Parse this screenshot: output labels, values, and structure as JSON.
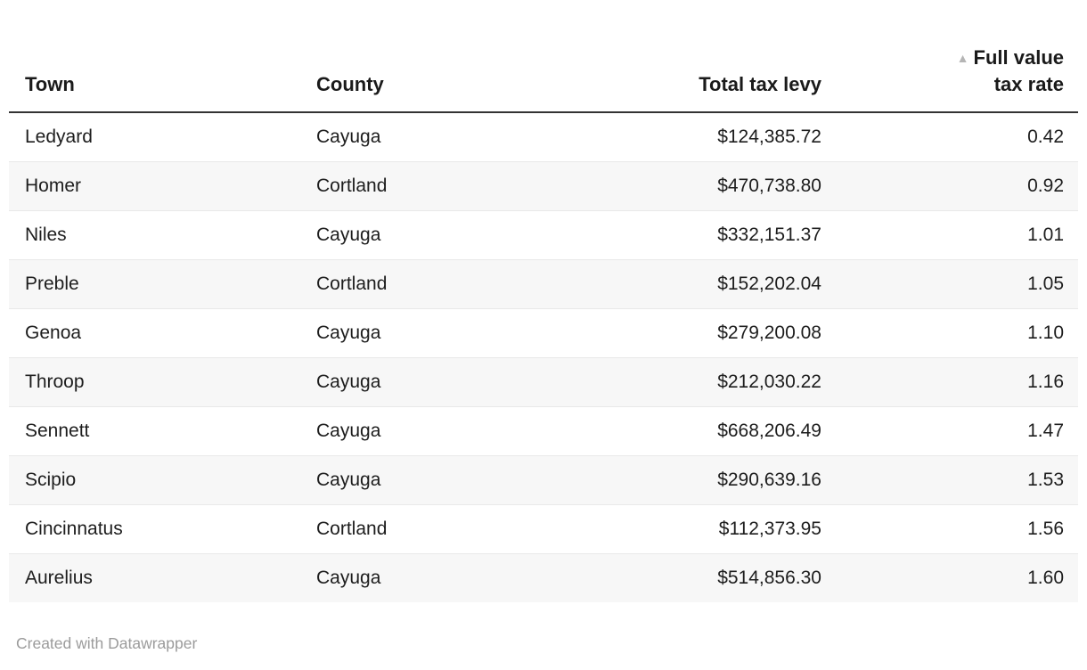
{
  "table": {
    "columns": [
      {
        "label": "Town",
        "align": "left"
      },
      {
        "label": "County",
        "align": "left"
      },
      {
        "label": "Total tax levy",
        "align": "right"
      },
      {
        "label": "Full value tax rate",
        "label_line1": "Full value",
        "label_line2": "tax rate",
        "align": "right",
        "sorted": "ascending"
      }
    ],
    "sort_icon": "▲",
    "rows": [
      {
        "town": "Ledyard",
        "county": "Cayuga",
        "levy": "$124,385.72",
        "rate": "0.42"
      },
      {
        "town": "Homer",
        "county": "Cortland",
        "levy": "$470,738.80",
        "rate": "0.92"
      },
      {
        "town": "Niles",
        "county": "Cayuga",
        "levy": "$332,151.37",
        "rate": "1.01"
      },
      {
        "town": "Preble",
        "county": "Cortland",
        "levy": "$152,202.04",
        "rate": "1.05"
      },
      {
        "town": "Genoa",
        "county": "Cayuga",
        "levy": "$279,200.08",
        "rate": "1.10"
      },
      {
        "town": "Throop",
        "county": "Cayuga",
        "levy": "$212,030.22",
        "rate": "1.16"
      },
      {
        "town": "Sennett",
        "county": "Cayuga",
        "levy": "$668,206.49",
        "rate": "1.47"
      },
      {
        "town": "Scipio",
        "county": "Cayuga",
        "levy": "$290,639.16",
        "rate": "1.53"
      },
      {
        "town": "Cincinnatus",
        "county": "Cortland",
        "levy": "$112,373.95",
        "rate": "1.56"
      },
      {
        "town": "Aurelius",
        "county": "Cayuga",
        "levy": "$514,856.30",
        "rate": "1.60"
      }
    ]
  },
  "footer": {
    "attribution": "Created with Datawrapper"
  },
  "colors": {
    "text": "#1d1d1d",
    "header_text": "#1a1a1a",
    "header_rule": "#333333",
    "row_stripe": "#f7f7f7",
    "row_border": "#e9e9e9",
    "sort_icon": "#b5b5b5",
    "attribution_text": "#9b9b9b"
  }
}
